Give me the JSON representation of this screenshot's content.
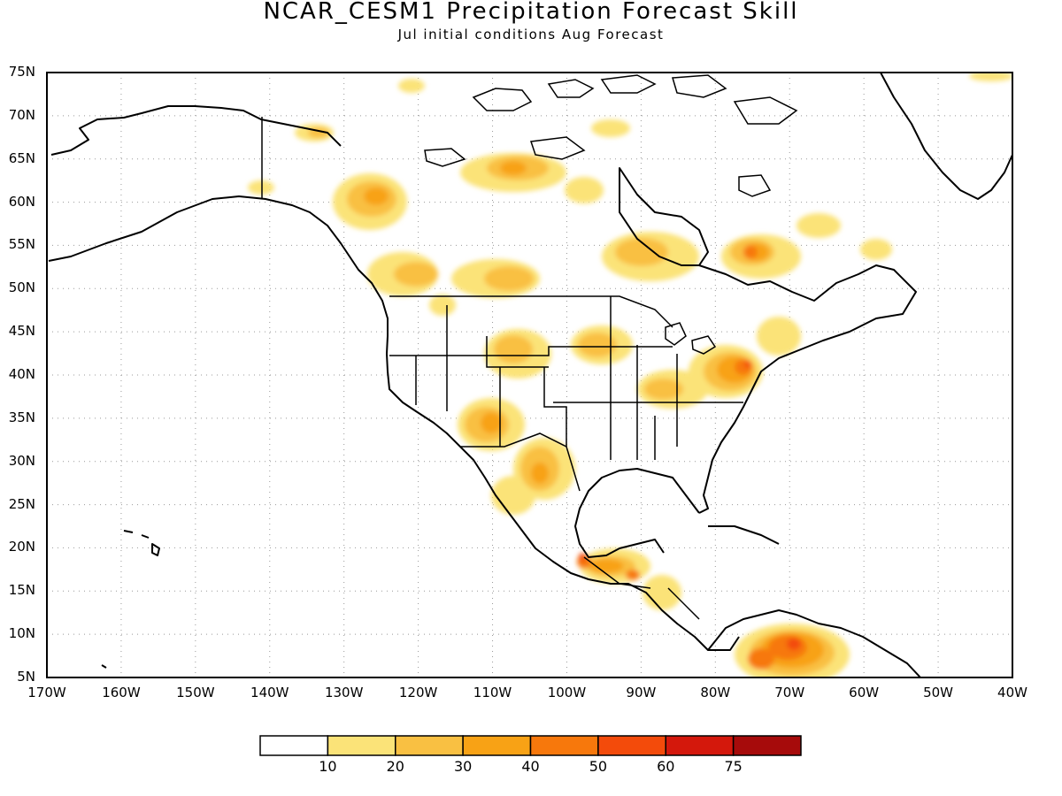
{
  "title": "NCAR_CESM1 Precipitation Forecast Skill",
  "subtitle": "Jul initial conditions   Aug Forecast",
  "map": {
    "lat_labels": [
      "75N",
      "70N",
      "65N",
      "60N",
      "55N",
      "50N",
      "45N",
      "40N",
      "35N",
      "30N",
      "25N",
      "20N",
      "15N",
      "10N",
      "5N"
    ],
    "lat_values": [
      75,
      70,
      65,
      60,
      55,
      50,
      45,
      40,
      35,
      30,
      25,
      20,
      15,
      10,
      5
    ],
    "lon_labels": [
      "170W",
      "160W",
      "150W",
      "140W",
      "130W",
      "120W",
      "110W",
      "100W",
      "90W",
      "80W",
      "70W",
      "60W",
      "50W",
      "40W"
    ],
    "lon_values": [
      -170,
      -160,
      -150,
      -140,
      -130,
      -120,
      -110,
      -100,
      -90,
      -80,
      -70,
      -60,
      -50,
      -40
    ],
    "lon_range": [
      -170,
      -40
    ],
    "lat_range": [
      5,
      75
    ]
  },
  "colorbar": {
    "labels": [
      "10",
      "20",
      "30",
      "40",
      "50",
      "60",
      "75"
    ],
    "colors": [
      "#ffffff",
      "#fbe378",
      "#f9c042",
      "#f8a215",
      "#f7780c",
      "#f34b0b",
      "#d4180c",
      "#a60b0b"
    ]
  }
}
